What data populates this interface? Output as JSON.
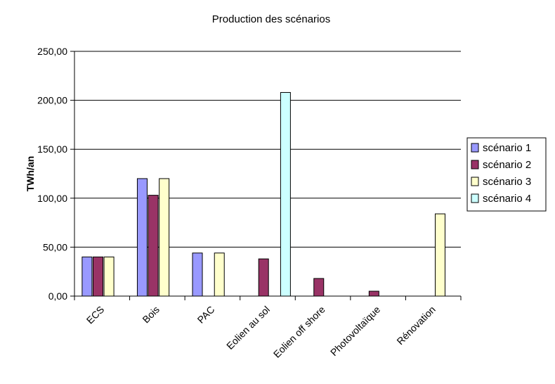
{
  "chart_data": {
    "type": "bar",
    "title": "Production des scénarios",
    "ylabel": "TWh/an",
    "xlabel": "",
    "ylim": [
      0,
      250
    ],
    "yticks": [
      "0,00",
      "50,00",
      "100,00",
      "150,00",
      "200,00",
      "250,00"
    ],
    "grid": true,
    "legend_position": "right",
    "categories": [
      "ECS",
      "Bois",
      "PAC",
      "Eolien au sol",
      "Eolien off shore",
      "Photovoltaïque",
      "Rénovation"
    ],
    "series": [
      {
        "name": "scénario 1",
        "color": "#9999ff",
        "values": [
          40,
          120,
          44,
          0,
          0,
          0,
          0
        ]
      },
      {
        "name": "scénario 2",
        "color": "#993366",
        "values": [
          40,
          103,
          0,
          38,
          18,
          5,
          0
        ]
      },
      {
        "name": "scénario 3",
        "color": "#ffffcc",
        "values": [
          40,
          120,
          44,
          0,
          0,
          0,
          84
        ]
      },
      {
        "name": "scénario 4",
        "color": "#ccffff",
        "values": [
          0,
          0,
          0,
          208,
          0,
          0,
          0
        ]
      }
    ]
  }
}
